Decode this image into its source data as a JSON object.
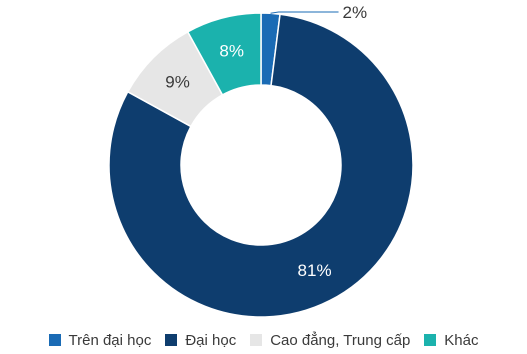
{
  "chart_data": {
    "type": "pie",
    "donut": true,
    "title": "",
    "categories": [
      "Trên đại học",
      "Đại học",
      "Cao đẳng, Trung cấp",
      "Khác"
    ],
    "values": [
      2,
      81,
      9,
      8
    ],
    "value_labels": [
      "2%",
      "81%",
      "9%",
      "8%"
    ],
    "colors": [
      "#1a6bb5",
      "#0e3d6e",
      "#e6e6e6",
      "#1bb2ad"
    ],
    "label_colors": [
      "#3a3a3a",
      "#ffffff",
      "#3a3a3a",
      "#ffffff"
    ],
    "legend_position": "bottom"
  }
}
